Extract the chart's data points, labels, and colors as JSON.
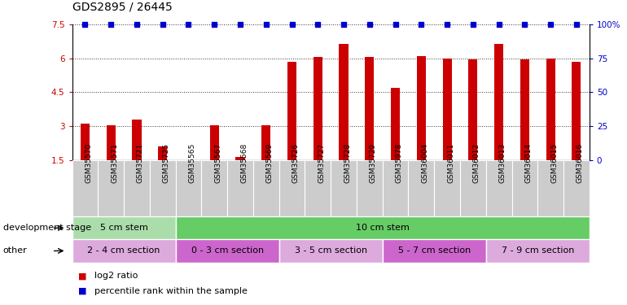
{
  "title": "GDS2895 / 26445",
  "samples": [
    "GSM35570",
    "GSM35571",
    "GSM35721",
    "GSM35725",
    "GSM35565",
    "GSM35567",
    "GSM35568",
    "GSM35569",
    "GSM35726",
    "GSM35727",
    "GSM35728",
    "GSM35729",
    "GSM35978",
    "GSM36004",
    "GSM36011",
    "GSM36012",
    "GSM36013",
    "GSM36014",
    "GSM36015",
    "GSM36016"
  ],
  "log2_ratio": [
    3.1,
    3.05,
    3.3,
    2.1,
    1.5,
    3.05,
    1.65,
    3.05,
    5.85,
    6.05,
    6.65,
    6.05,
    4.7,
    6.1,
    6.0,
    5.95,
    6.65,
    5.95,
    6.0,
    5.85
  ],
  "percentile": [
    100,
    100,
    100,
    100,
    100,
    100,
    100,
    100,
    100,
    100,
    100,
    100,
    100,
    100,
    100,
    100,
    100,
    100,
    100,
    100
  ],
  "ylim_left": [
    1.5,
    7.5
  ],
  "ylim_right": [
    0,
    100
  ],
  "yticks_left": [
    1.5,
    3.0,
    4.5,
    6.0,
    7.5
  ],
  "yticks_right": [
    0,
    25,
    50,
    75,
    100
  ],
  "ytick_labels_left": [
    "1.5",
    "3",
    "4.5",
    "6",
    "7.5"
  ],
  "ytick_labels_right": [
    "0",
    "25",
    "50",
    "75",
    "100%"
  ],
  "bar_color": "#cc0000",
  "percentile_color": "#0000cc",
  "background_color": "#ffffff",
  "xlabel_bg_color": "#cccccc",
  "dev_stage_groups": [
    {
      "label": "5 cm stem",
      "start": 0,
      "end": 4,
      "color": "#aaddaa"
    },
    {
      "label": "10 cm stem",
      "start": 4,
      "end": 20,
      "color": "#66cc66"
    }
  ],
  "other_groups": [
    {
      "label": "2 - 4 cm section",
      "start": 0,
      "end": 4,
      "color": "#ddaadd"
    },
    {
      "label": "0 - 3 cm section",
      "start": 4,
      "end": 8,
      "color": "#cc66cc"
    },
    {
      "label": "3 - 5 cm section",
      "start": 8,
      "end": 12,
      "color": "#ddaadd"
    },
    {
      "label": "5 - 7 cm section",
      "start": 12,
      "end": 16,
      "color": "#cc66cc"
    },
    {
      "label": "7 - 9 cm section",
      "start": 16,
      "end": 20,
      "color": "#ddaadd"
    }
  ],
  "legend_items": [
    {
      "label": "log2 ratio",
      "color": "#cc0000"
    },
    {
      "label": "percentile rank within the sample",
      "color": "#0000cc"
    }
  ],
  "dev_stage_label": "development stage",
  "other_label": "other",
  "grid_linestyle": ":",
  "grid_color": "#333333",
  "title_fontsize": 10,
  "tick_fontsize": 7.5,
  "label_fontsize": 8,
  "annotation_fontsize": 8
}
